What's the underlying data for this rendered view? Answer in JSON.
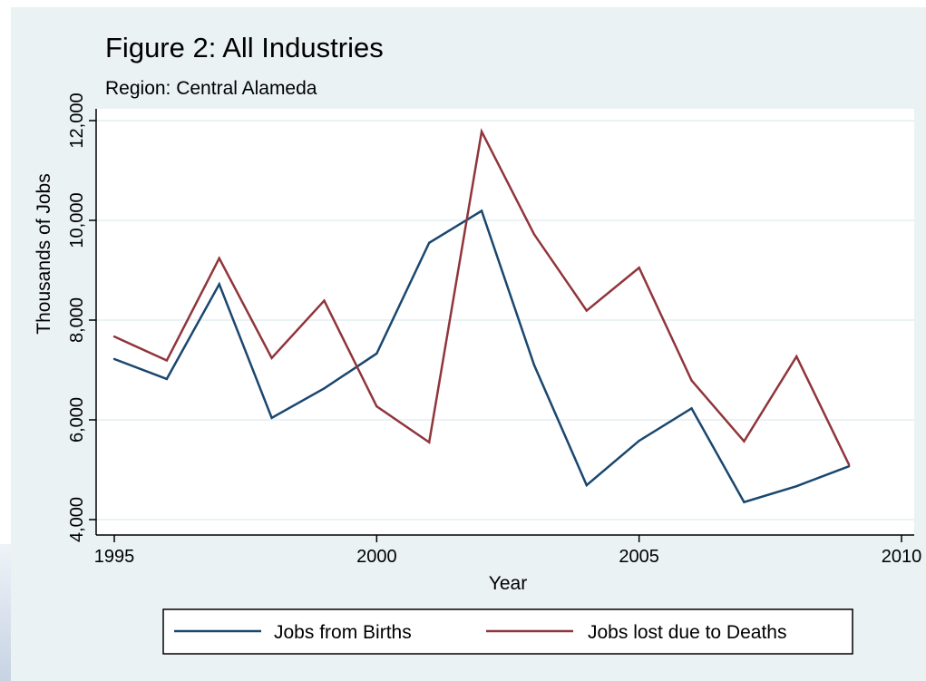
{
  "chart_data": {
    "type": "line",
    "title": "Figure 2: All Industries",
    "subtitle": "Region: Central Alameda",
    "xlabel": "Year",
    "ylabel": "Thousands of Jobs",
    "xlim": [
      1995,
      2010
    ],
    "ylim": [
      4000,
      12000
    ],
    "x_ticks": [
      1995,
      2000,
      2005,
      2010
    ],
    "x_tick_labels": [
      "1995",
      "2000",
      "2005",
      "2010"
    ],
    "y_ticks": [
      4000,
      6000,
      8000,
      10000,
      12000
    ],
    "y_tick_labels": [
      "4,000",
      "6,000",
      "8,000",
      "10,000",
      "12,000"
    ],
    "grid": true,
    "legend_position": "bottom",
    "x": [
      1995,
      1996,
      1997,
      1998,
      1999,
      2000,
      2001,
      2002,
      2003,
      2004,
      2005,
      2006,
      2007,
      2008,
      2009
    ],
    "series": [
      {
        "name": "Jobs from Births",
        "color": "#1a476f",
        "values": [
          7220,
          6820,
          8720,
          6040,
          6630,
          7330,
          9550,
          10190,
          7100,
          4690,
          5580,
          6230,
          4350,
          4670,
          5070
        ]
      },
      {
        "name": "Jobs lost due to Deaths",
        "color": "#90353b",
        "values": [
          7670,
          7190,
          9240,
          7240,
          8390,
          6270,
          5550,
          11780,
          9720,
          8190,
          9050,
          6790,
          5570,
          7270,
          5100
        ]
      }
    ]
  }
}
